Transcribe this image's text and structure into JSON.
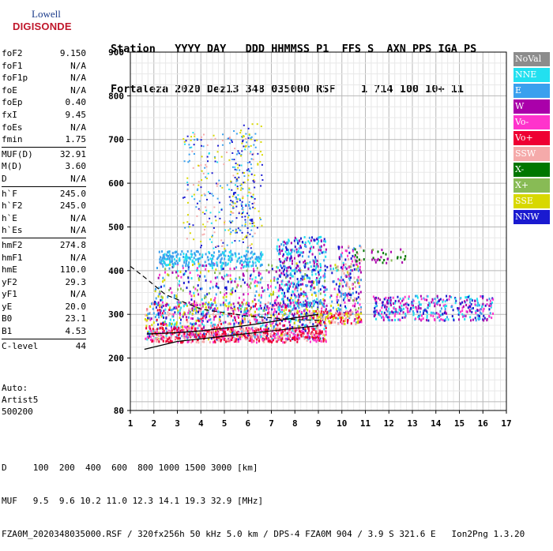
{
  "logo": {
    "line1": "Lowell",
    "line2": "DIGISONDE"
  },
  "header": {
    "line1": "Station   YYYY DAY   DDD HHMMSS P1  FFS S  AXN PPS IGA PS",
    "line2": "Fortaleza 2020 Dez13 348 035000 RSF    1 714 100 10+ 11"
  },
  "params": [
    {
      "key": "foF2",
      "value": "9.150"
    },
    {
      "key": "foF1",
      "value": "N/A"
    },
    {
      "key": "foF1p",
      "value": "N/A"
    },
    {
      "key": "foE",
      "value": "N/A"
    },
    {
      "key": "foEp",
      "value": "0.40"
    },
    {
      "key": "fxI",
      "value": "9.45"
    },
    {
      "key": "foEs",
      "value": "N/A"
    },
    {
      "key": "fmin",
      "value": "1.75"
    },
    {
      "key": "MUF(D)",
      "value": "32.91"
    },
    {
      "key": "M(D)",
      "value": "3.60"
    },
    {
      "key": "D",
      "value": "N/A"
    },
    {
      "key": "h`F",
      "value": "245.0"
    },
    {
      "key": "h`F2",
      "value": "245.0"
    },
    {
      "key": "h`E",
      "value": "N/A"
    },
    {
      "key": "h`Es",
      "value": "N/A"
    },
    {
      "key": "hmF2",
      "value": "274.8"
    },
    {
      "key": "hmF1",
      "value": "N/A"
    },
    {
      "key": "hmE",
      "value": "110.0"
    },
    {
      "key": "yF2",
      "value": "29.3"
    },
    {
      "key": "yF1",
      "value": "N/A"
    },
    {
      "key": "yE",
      "value": "20.0"
    },
    {
      "key": "B0",
      "value": "23.1"
    },
    {
      "key": "B1",
      "value": "4.53"
    },
    {
      "key": "C-level",
      "value": "44"
    }
  ],
  "auto": [
    "Auto:",
    "Artist5",
    "500200"
  ],
  "footer": {
    "line1": "D     100  200  400  600  800 1000 1500 3000 [km]",
    "line2": "MUF   9.5  9.6 10.2 11.0 12.3 14.1 19.3 32.9 [MHz]",
    "line3": "FZA0M_2020348035000.RSF / 320fx256h 50 kHz 5.0 km / DPS-4 FZA0M 904 / 3.9 S 321.6 E   Ion2Png 1.3.20"
  },
  "legend": [
    {
      "label": "NoVal",
      "color": "#8c8c8c"
    },
    {
      "label": "NNE",
      "color": "#22e0f0"
    },
    {
      "label": "E",
      "color": "#3aa0ee"
    },
    {
      "label": "W",
      "color": "#aa00aa"
    },
    {
      "label": "Vo-",
      "color": "#ff33cc"
    },
    {
      "label": "Vo+",
      "color": "#ee0033"
    },
    {
      "label": "SSW",
      "color": "#f5aaaa"
    },
    {
      "label": "X-",
      "color": "#007700"
    },
    {
      "label": "X+",
      "color": "#88bb55"
    },
    {
      "label": "SSE",
      "color": "#d8d800"
    },
    {
      "label": "NNW",
      "color": "#1a1ad0"
    }
  ],
  "chart_data": {
    "type": "scatter",
    "title": "",
    "xlabel": "",
    "ylabel": "",
    "xlim": [
      1,
      17
    ],
    "ylim": [
      80,
      900
    ],
    "x_ticks": [
      1,
      2,
      3,
      4,
      5,
      6,
      7,
      8,
      9,
      10,
      11,
      12,
      13,
      14,
      15,
      16,
      17
    ],
    "y_ticks": [
      80,
      200,
      300,
      400,
      500,
      600,
      700,
      800,
      900
    ],
    "grid": true,
    "ionogram_traces": [
      {
        "name": "O-trace F2 (Vo+/Vo-)",
        "freq_range": [
          1.6,
          9.2
        ],
        "height_range": [
          240,
          300
        ]
      },
      {
        "name": "Diffuse F-region spread",
        "freq_range": [
          1.6,
          10.6
        ],
        "height_range": [
          250,
          430
        ]
      },
      {
        "name": "Oblique echoes (E/NNE)",
        "freq_range": [
          2.5,
          6.5
        ],
        "height_range": [
          410,
          450
        ]
      },
      {
        "name": "Spread F (NNW)",
        "freq_range": [
          7.2,
          9.2
        ],
        "height_range": [
          320,
          480
        ]
      },
      {
        "name": "Sporadic high echoes (SSE)",
        "freq_range": [
          3.2,
          6.2
        ],
        "height_range": [
          500,
          730
        ]
      },
      {
        "name": "Extended spread (NNW/E)",
        "freq_range": [
          11.2,
          16.4
        ],
        "height_range": [
          285,
          345
        ]
      },
      {
        "name": "X-mode echoes",
        "freq_range": [
          10.5,
          12.8
        ],
        "height_range": [
          420,
          450
        ]
      }
    ],
    "profile_lower": [
      [
        1.6,
        220
      ],
      [
        3,
        238
      ],
      [
        5,
        250
      ],
      [
        7,
        262
      ],
      [
        9,
        274
      ]
    ],
    "profile_upper": [
      [
        1.0,
        410
      ],
      [
        1.6,
        385
      ],
      [
        2.5,
        345
      ],
      [
        4,
        312
      ],
      [
        6,
        296
      ],
      [
        8,
        288
      ],
      [
        9.2,
        286
      ]
    ],
    "fitted_trace": [
      [
        1.7,
        255
      ],
      [
        3,
        258
      ],
      [
        4,
        262
      ],
      [
        5,
        268
      ],
      [
        6,
        275
      ],
      [
        7,
        283
      ],
      [
        8,
        292
      ],
      [
        9,
        300
      ]
    ]
  }
}
